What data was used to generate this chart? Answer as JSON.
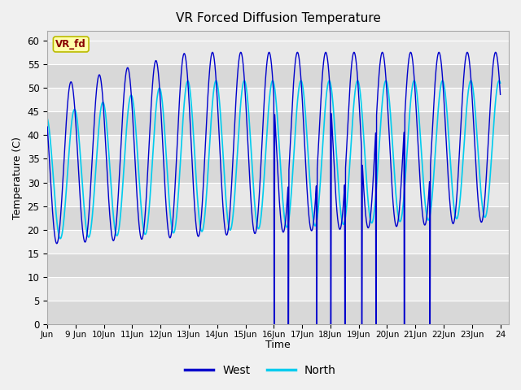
{
  "title": "VR Forced Diffusion Temperature",
  "xlabel": "Time",
  "ylabel": "Temperature (C)",
  "ylim": [
    0,
    62
  ],
  "yticks": [
    0,
    5,
    10,
    15,
    20,
    25,
    30,
    35,
    40,
    45,
    50,
    55,
    60
  ],
  "background_color": "#f0f0f0",
  "plot_bg_color": "#e8e8e8",
  "west_color": "#0000cc",
  "north_color": "#00ccee",
  "west_label": "West",
  "north_label": "North",
  "annotation_text": "VR_fd",
  "annotation_bg": "#ffffaa",
  "annotation_border": "#bbbb00",
  "annotation_text_color": "#880000",
  "x_start_days": 8.0,
  "x_end_days": 24.3,
  "x_tick_days": [
    8,
    9,
    10,
    11,
    12,
    13,
    14,
    15,
    16,
    17,
    18,
    19,
    20,
    21,
    22,
    23,
    24
  ],
  "x_tick_labels": [
    "Jun",
    "9 Jun",
    "10Jun",
    "11Jun",
    "12Jun",
    "13Jun",
    "14Jun",
    "15Jun",
    "16Jun",
    "17Jun",
    "18Jun",
    "19Jun",
    "20Jun",
    "21Jun",
    "22Jun",
    "23Jun",
    "24"
  ]
}
